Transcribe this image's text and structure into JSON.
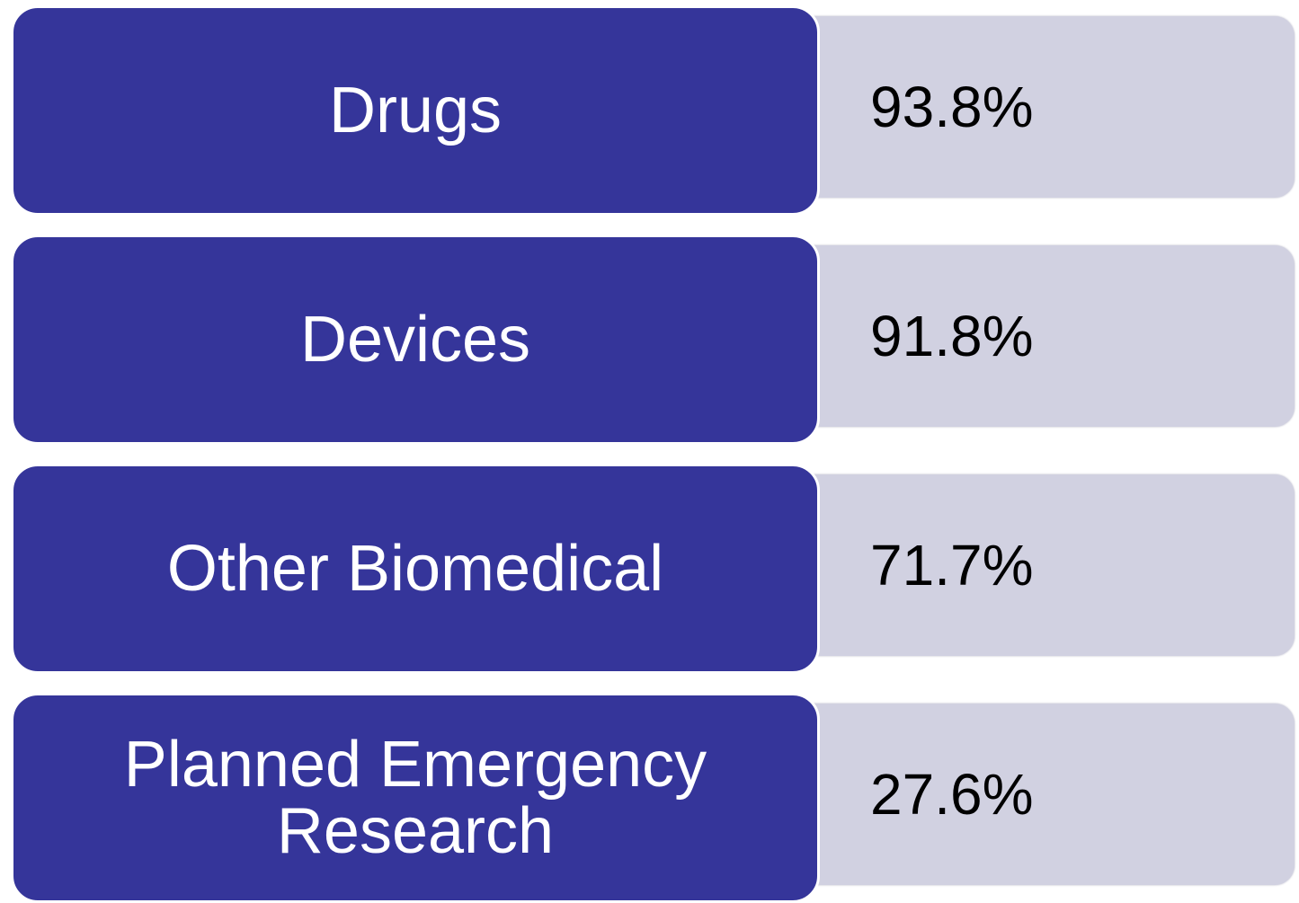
{
  "items": [
    {
      "label": "Drugs",
      "value": "93.8%"
    },
    {
      "label": "Devices",
      "value": "91.8%"
    },
    {
      "label": "Other Biomedical",
      "value": "71.7%"
    },
    {
      "label": "Planned Emergency Research",
      "value": "27.6%"
    }
  ]
}
